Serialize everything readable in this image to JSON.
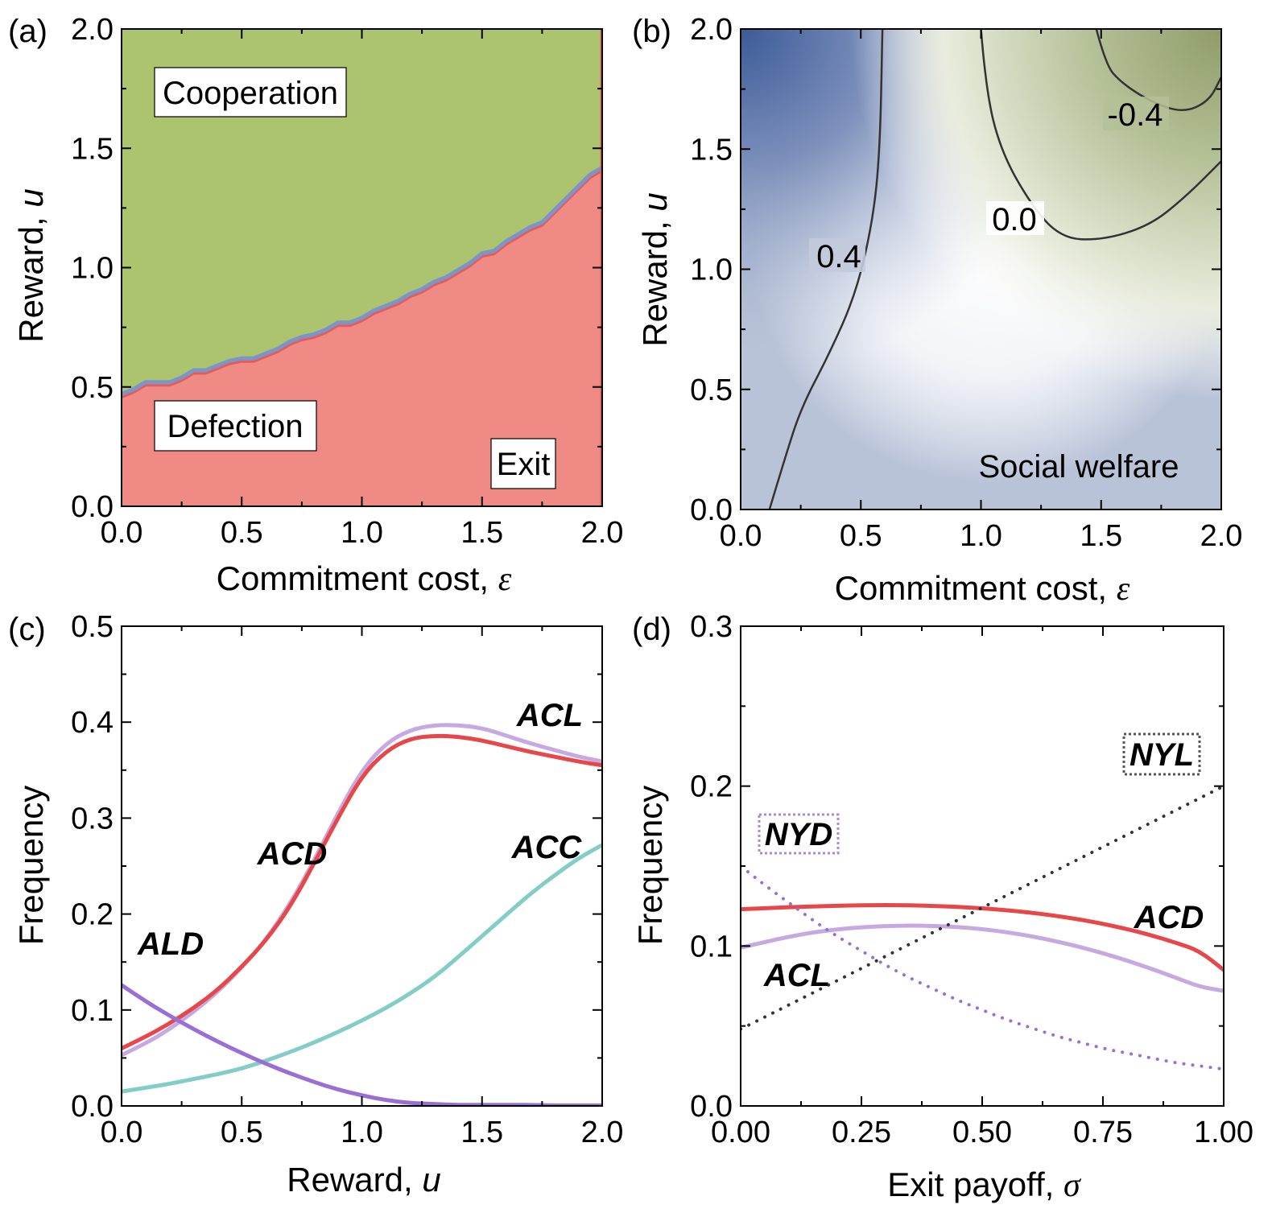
{
  "panels": {
    "a": {
      "label": "(a)",
      "xlabel_text": "Commitment cost, ",
      "xlabel_symbol": "ε",
      "ylabel_text": "Reward, ",
      "ylabel_symbol": "u",
      "xticks": [
        "0.0",
        "0.5",
        "1.0",
        "1.5",
        "2.0"
      ],
      "yticks": [
        "0.0",
        "0.5",
        "1.0",
        "1.5",
        "2.0"
      ],
      "region_labels": {
        "cooperation": "Cooperation",
        "defection": "Defection",
        "exit": "Exit"
      },
      "colors": {
        "cooperation": "#adc46e",
        "exit": "#f08a84",
        "defection": "#7b94c9",
        "exit_edge": "#e35c58"
      }
    },
    "b": {
      "label": "(b)",
      "xlabel_text": "Commitment cost, ",
      "xlabel_symbol": "ε",
      "ylabel_text": "Reward, ",
      "ylabel_symbol": "u",
      "xticks": [
        "0.0",
        "0.5",
        "1.0",
        "1.5",
        "2.0"
      ],
      "yticks": [
        "0.0",
        "0.5",
        "1.0",
        "1.5",
        "2.0"
      ],
      "contour_labels": [
        "0.4",
        "0.0",
        "-0.4"
      ],
      "annotation": "Social welfare"
    },
    "c": {
      "label": "(c)",
      "xlabel_text": "Reward, ",
      "xlabel_symbol": "u",
      "ylabel_text": "Frequency",
      "xticks": [
        "0.0",
        "0.5",
        "1.0",
        "1.5",
        "2.0"
      ],
      "yticks": [
        "0.0",
        "0.1",
        "0.2",
        "0.3",
        "0.4",
        "0.5"
      ],
      "series_labels": {
        "ACL": "ACL",
        "ACD": "ACD",
        "ACC": "ACC",
        "ALD": "ALD"
      }
    },
    "d": {
      "label": "(d)",
      "xlabel_text": "Exit payoff, ",
      "xlabel_symbol": "σ",
      "ylabel_text": "Frequency",
      "xticks": [
        "0.00",
        "0.25",
        "0.50",
        "0.75",
        "1.00"
      ],
      "yticks": [
        "0.0",
        "0.1",
        "0.2",
        "0.3"
      ],
      "series_labels": {
        "NYL": "NYL",
        "NYD": "NYD",
        "ACD": "ACD",
        "ACL": "ACL"
      }
    }
  },
  "chart_data": [
    {
      "panel": "a",
      "type": "area",
      "title": "",
      "xlabel": "Commitment cost, ε",
      "ylabel": "Reward, u",
      "xlim": [
        0,
        2
      ],
      "ylim": [
        0,
        2
      ],
      "boundary_eps": [
        0.0,
        0.05,
        0.1,
        0.15,
        0.2,
        0.25,
        0.3,
        0.35,
        0.4,
        0.45,
        0.5,
        0.55,
        0.6,
        0.65,
        0.7,
        0.75,
        0.8,
        0.85,
        0.9,
        0.95,
        1.0,
        1.05,
        1.1,
        1.15,
        1.2,
        1.25,
        1.3,
        1.35,
        1.4,
        1.45,
        1.5,
        1.55,
        1.6,
        1.65,
        1.7,
        1.75,
        1.8,
        1.85,
        1.9,
        1.95,
        2.0
      ],
      "boundary_u": [
        0.47,
        0.49,
        0.52,
        0.52,
        0.52,
        0.54,
        0.57,
        0.57,
        0.59,
        0.61,
        0.62,
        0.62,
        0.64,
        0.66,
        0.69,
        0.71,
        0.72,
        0.74,
        0.77,
        0.77,
        0.79,
        0.82,
        0.84,
        0.86,
        0.89,
        0.91,
        0.94,
        0.96,
        0.99,
        1.02,
        1.06,
        1.07,
        1.11,
        1.14,
        1.17,
        1.19,
        1.24,
        1.29,
        1.34,
        1.39,
        1.42
      ],
      "regions": [
        "Cooperation",
        "Defection",
        "Exit"
      ]
    },
    {
      "panel": "b",
      "type": "heatmap",
      "title": "Social welfare",
      "xlabel": "Commitment cost, ε",
      "ylabel": "Reward, u",
      "xlim": [
        0,
        2
      ],
      "ylim": [
        0,
        2
      ],
      "contours": [
        {
          "level": 0.4,
          "points": [
            [
              0.12,
              0.0
            ],
            [
              0.18,
              0.2
            ],
            [
              0.25,
              0.42
            ],
            [
              0.37,
              0.65
            ],
            [
              0.48,
              0.9
            ],
            [
              0.55,
              1.2
            ],
            [
              0.58,
              1.5
            ],
            [
              0.59,
              2.0
            ]
          ]
        },
        {
          "level": 0.0,
          "points": [
            [
              1.0,
              2.0
            ],
            [
              1.02,
              1.75
            ],
            [
              1.08,
              1.5
            ],
            [
              1.2,
              1.28
            ],
            [
              1.33,
              1.13
            ],
            [
              1.5,
              1.12
            ],
            [
              1.7,
              1.18
            ],
            [
              1.85,
              1.3
            ],
            [
              2.0,
              1.45
            ]
          ]
        },
        {
          "level": -0.4,
          "points": [
            [
              1.48,
              2.0
            ],
            [
              1.52,
              1.85
            ],
            [
              1.58,
              1.78
            ],
            [
              1.7,
              1.7
            ],
            [
              1.84,
              1.65
            ],
            [
              1.95,
              1.7
            ],
            [
              2.0,
              1.8
            ]
          ]
        }
      ],
      "colormap": [
        "#3b5b98",
        "#b9c3d8",
        "#ffffff",
        "#b2c08e",
        "#7d8e5a"
      ]
    },
    {
      "panel": "c",
      "type": "line",
      "title": "",
      "xlabel": "Reward, u",
      "ylabel": "Frequency",
      "xlim": [
        0,
        2
      ],
      "ylim": [
        0,
        0.5
      ],
      "x": [
        0.0,
        0.1,
        0.2,
        0.3,
        0.4,
        0.5,
        0.6,
        0.7,
        0.8,
        0.9,
        1.0,
        1.1,
        1.2,
        1.3,
        1.4,
        1.5,
        1.6,
        1.7,
        1.8,
        1.9,
        2.0
      ],
      "series": [
        {
          "name": "ACL",
          "color": "#c7a9e2",
          "values": [
            0.053,
            0.065,
            0.08,
            0.098,
            0.119,
            0.144,
            0.173,
            0.21,
            0.255,
            0.305,
            0.35,
            0.378,
            0.392,
            0.397,
            0.397,
            0.394,
            0.386,
            0.378,
            0.371,
            0.364,
            0.359
          ]
        },
        {
          "name": "ACD",
          "color": "#e8474a",
          "values": [
            0.06,
            0.072,
            0.086,
            0.102,
            0.121,
            0.145,
            0.172,
            0.207,
            0.252,
            0.3,
            0.344,
            0.37,
            0.383,
            0.386,
            0.385,
            0.381,
            0.375,
            0.369,
            0.364,
            0.359,
            0.355
          ]
        },
        {
          "name": "ACC",
          "color": "#82cdc5",
          "values": [
            0.015,
            0.019,
            0.023,
            0.028,
            0.033,
            0.039,
            0.047,
            0.056,
            0.066,
            0.077,
            0.089,
            0.102,
            0.117,
            0.134,
            0.155,
            0.177,
            0.199,
            0.221,
            0.24,
            0.258,
            0.272
          ]
        },
        {
          "name": "ALD",
          "color": "#9a6fd4",
          "values": [
            0.126,
            0.109,
            0.094,
            0.08,
            0.067,
            0.055,
            0.044,
            0.034,
            0.025,
            0.017,
            0.011,
            0.006,
            0.003,
            0.002,
            0.001,
            0.001,
            0.001,
            0.001,
            0.0005,
            0.0005,
            0.0005
          ]
        }
      ]
    },
    {
      "panel": "d",
      "type": "line",
      "title": "",
      "xlabel": "Exit payoff, σ",
      "ylabel": "Frequency",
      "xlim": [
        0,
        1
      ],
      "ylim": [
        0,
        0.3
      ],
      "x": [
        0.0,
        0.05,
        0.1,
        0.15,
        0.2,
        0.25,
        0.3,
        0.35,
        0.4,
        0.45,
        0.5,
        0.55,
        0.6,
        0.65,
        0.7,
        0.75,
        0.8,
        0.85,
        0.9,
        0.95,
        1.0
      ],
      "series": [
        {
          "name": "ACD",
          "color": "#e8474a",
          "style": "solid",
          "values": [
            0.123,
            0.1236,
            0.1243,
            0.1248,
            0.1252,
            0.1255,
            0.1256,
            0.1255,
            0.1251,
            0.1245,
            0.1236,
            0.1224,
            0.1209,
            0.119,
            0.1167,
            0.1139,
            0.1106,
            0.1067,
            0.1022,
            0.097,
            0.085
          ]
        },
        {
          "name": "ACL",
          "color": "#c7a9e2",
          "style": "solid",
          "values": [
            0.099,
            0.1025,
            0.1058,
            0.1085,
            0.1105,
            0.1118,
            0.1125,
            0.1128,
            0.1126,
            0.1119,
            0.1106,
            0.1087,
            0.1062,
            0.1032,
            0.0996,
            0.0955,
            0.0909,
            0.0858,
            0.0803,
            0.0745,
            0.072
          ]
        },
        {
          "name": "NYL",
          "color": "#333333",
          "style": "dotted",
          "values": [
            0.048,
            0.0556,
            0.0632,
            0.0708,
            0.0784,
            0.086,
            0.0936,
            0.1012,
            0.1088,
            0.1164,
            0.124,
            0.1316,
            0.1392,
            0.1468,
            0.1544,
            0.162,
            0.1696,
            0.1772,
            0.1848,
            0.1924,
            0.2
          ]
        },
        {
          "name": "NYD",
          "color": "#9a6fd4",
          "style": "dotted",
          "values": [
            0.15,
            0.138,
            0.127,
            0.116,
            0.106,
            0.097,
            0.088,
            0.08,
            0.073,
            0.066,
            0.06,
            0.054,
            0.049,
            0.044,
            0.04,
            0.036,
            0.033,
            0.03,
            0.027,
            0.025,
            0.023
          ]
        }
      ]
    }
  ]
}
